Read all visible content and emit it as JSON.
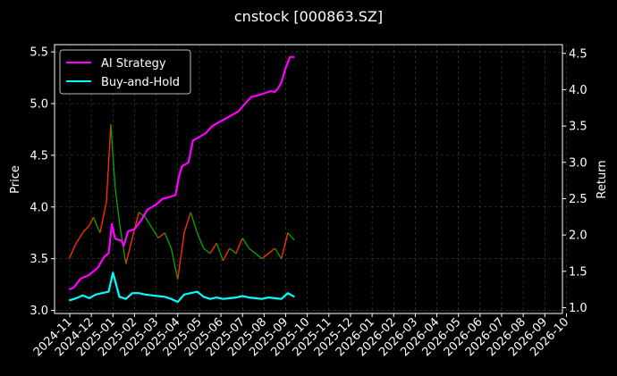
{
  "chart_data": {
    "type": "line",
    "title": "cnstock [000863.SZ]",
    "ylabel_left": "Price",
    "ylabel_right": "Return",
    "ylim_left": [
      2.97,
      5.57
    ],
    "yticks_left": [
      "3.0",
      "3.5",
      "4.0",
      "4.5",
      "5.0",
      "5.5"
    ],
    "ylim_right": [
      0.92,
      4.62
    ],
    "yticks_right": [
      "1.0",
      "1.5",
      "2.0",
      "2.5",
      "3.0",
      "3.5",
      "4.0",
      "4.5"
    ],
    "x_tick_labels": [
      "2024-11",
      "2024-12",
      "2025-01",
      "2025-02",
      "2025-03",
      "2025-04",
      "2025-05",
      "2025-06",
      "2025-07",
      "2025-08",
      "2025-09",
      "2025-10",
      "2025-11",
      "2025-12",
      "2026-01",
      "2026-02",
      "2026-03",
      "2026-04",
      "2026-05",
      "2026-06",
      "2026-07",
      "2026-08",
      "2026-09",
      "2026-10"
    ],
    "grid": true,
    "legend_position": "top-left",
    "colors": {
      "ai_strategy": "#ff00ff",
      "buy_and_hold": "#00ffff",
      "candle_up": "#ff2a00",
      "candle_down": "#00a000",
      "background": "#000000",
      "grid": "#444444"
    },
    "price_series": {
      "name": "",
      "x": [
        -0.03,
        0.3,
        0.6,
        0.9,
        1.1,
        1.4,
        1.7,
        1.9,
        2.1,
        2.3,
        2.6,
        2.9,
        3.2,
        3.5,
        3.8,
        4.1,
        4.4,
        4.7,
        5.0,
        5.3,
        5.6,
        5.9,
        6.2,
        6.5,
        6.8,
        7.1,
        7.4,
        7.7,
        8.0,
        8.3,
        8.6,
        8.9,
        9.2,
        9.5,
        9.8,
        10.1,
        10.4
      ],
      "values": [
        3.5,
        3.65,
        3.75,
        3.82,
        3.9,
        3.75,
        4.05,
        4.8,
        4.2,
        3.85,
        3.45,
        3.7,
        3.95,
        3.9,
        3.8,
        3.7,
        3.75,
        3.6,
        3.3,
        3.75,
        3.95,
        3.75,
        3.6,
        3.55,
        3.65,
        3.48,
        3.6,
        3.55,
        3.7,
        3.6,
        3.55,
        3.5,
        3.55,
        3.6,
        3.5,
        3.75,
        3.68
      ]
    },
    "series": [
      {
        "name": "AI Strategy",
        "x": [
          -0.03,
          0.2,
          0.5,
          0.9,
          1.3,
          1.6,
          1.8,
          1.95,
          2.1,
          2.4,
          2.5,
          2.7,
          3.0,
          3.3,
          3.6,
          4.0,
          4.3,
          4.6,
          4.9,
          5.05,
          5.2,
          5.35,
          5.5,
          5.7,
          6.0,
          6.3,
          6.6,
          6.9,
          7.2,
          7.5,
          7.8,
          8.1,
          8.4,
          8.7,
          9.0,
          9.3,
          9.5,
          9.65,
          9.8,
          10.0,
          10.2,
          10.4
        ],
        "values": [
          1.25,
          1.28,
          1.4,
          1.45,
          1.55,
          1.7,
          1.75,
          2.15,
          1.95,
          1.92,
          1.85,
          2.05,
          2.08,
          2.2,
          2.35,
          2.42,
          2.5,
          2.52,
          2.55,
          2.8,
          2.95,
          2.97,
          3.0,
          3.3,
          3.35,
          3.4,
          3.5,
          3.55,
          3.6,
          3.65,
          3.7,
          3.8,
          3.9,
          3.92,
          3.95,
          3.98,
          3.97,
          4.02,
          4.1,
          4.3,
          4.45,
          4.45
        ]
      },
      {
        "name": "Buy-and-Hold",
        "x": [
          -0.03,
          0.3,
          0.6,
          0.9,
          1.2,
          1.5,
          1.8,
          2.0,
          2.15,
          2.3,
          2.6,
          2.9,
          3.2,
          3.5,
          3.8,
          4.1,
          4.4,
          4.7,
          5.0,
          5.3,
          5.6,
          5.9,
          6.2,
          6.5,
          6.8,
          7.1,
          7.4,
          7.7,
          8.0,
          8.3,
          8.6,
          8.9,
          9.2,
          9.5,
          9.8,
          10.1,
          10.4
        ],
        "values": [
          1.1,
          1.13,
          1.17,
          1.13,
          1.18,
          1.2,
          1.22,
          1.48,
          1.32,
          1.15,
          1.12,
          1.2,
          1.2,
          1.18,
          1.17,
          1.16,
          1.15,
          1.12,
          1.08,
          1.18,
          1.2,
          1.22,
          1.15,
          1.12,
          1.14,
          1.12,
          1.13,
          1.14,
          1.16,
          1.14,
          1.13,
          1.12,
          1.14,
          1.13,
          1.12,
          1.2,
          1.15
        ]
      }
    ]
  }
}
